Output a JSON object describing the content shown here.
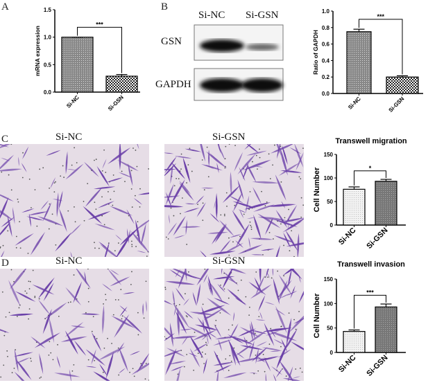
{
  "panels": {
    "A": "A",
    "B": "B",
    "C": "C",
    "D": "D"
  },
  "blot": {
    "columns": [
      "Si-NC",
      "Si-GSN"
    ],
    "rows": [
      "GSN",
      "GAPDH"
    ]
  },
  "micrographs": {
    "columns": [
      "Si-NC",
      "Si-GSN"
    ],
    "stain_color": "#6a3fa8"
  },
  "chart_data": [
    {
      "type": "bar",
      "panel": "A",
      "ylabel": "mRNA expression",
      "categories": [
        "Si-NC",
        "Si-GSN"
      ],
      "values": [
        1.0,
        0.29
      ],
      "errors": [
        0.0,
        0.03
      ],
      "ylim": [
        0,
        1.5
      ],
      "yticks": [
        "0.0",
        "0.5",
        "1.0",
        "1.5"
      ],
      "significance": "***"
    },
    {
      "type": "bar",
      "panel": "B",
      "ylabel": "Ratio of GAPDH",
      "categories": [
        "Si-NC",
        "Si-GSN"
      ],
      "values": [
        0.75,
        0.2
      ],
      "errors": [
        0.03,
        0.015
      ],
      "ylim": [
        0,
        1.0
      ],
      "yticks": [
        "0.0",
        "0.2",
        "0.4",
        "0.6",
        "0.8",
        "1.0"
      ],
      "significance": "***"
    },
    {
      "type": "bar",
      "panel": "C",
      "title": "Transwell migration",
      "ylabel": "Cell Number",
      "categories": [
        "Si-NC",
        "Si-GSN"
      ],
      "values": [
        76,
        93
      ],
      "errors": [
        5,
        4
      ],
      "ylim": [
        0,
        150
      ],
      "yticks": [
        "0",
        "50",
        "100",
        "150"
      ],
      "significance": "*"
    },
    {
      "type": "bar",
      "panel": "D",
      "title": "Transwell invasion",
      "ylabel": "Cell Number",
      "categories": [
        "Si-NC",
        "Si-GSN"
      ],
      "values": [
        43,
        93
      ],
      "errors": [
        3,
        6
      ],
      "ylim": [
        0,
        150
      ],
      "yticks": [
        "0",
        "50",
        "100",
        "150"
      ],
      "significance": "***"
    }
  ]
}
